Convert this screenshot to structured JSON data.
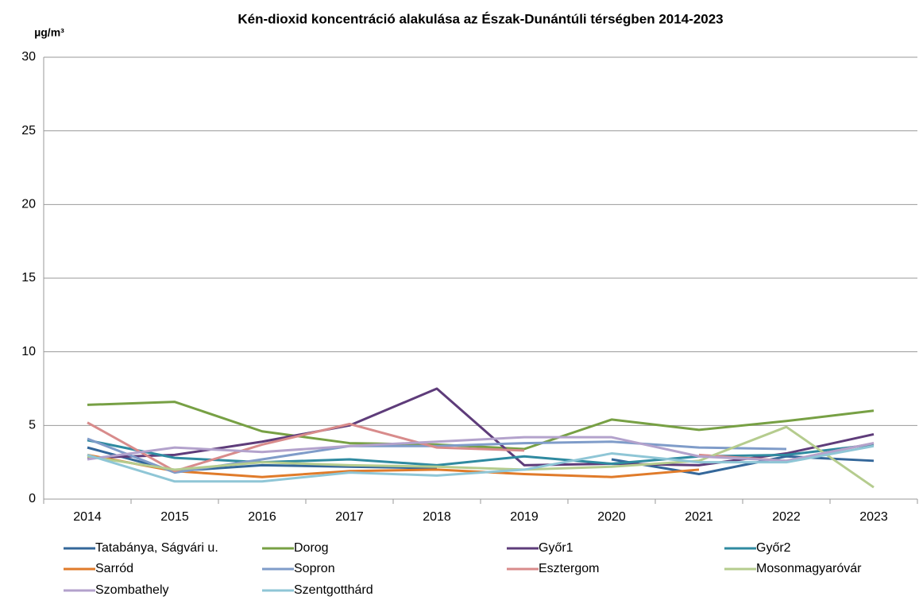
{
  "chart_data": {
    "type": "line",
    "title": "Kén-dioxid koncentráció alakulása az Észak-Dunántúli térségben 2014-2023",
    "ylabel": "µg/m³",
    "categories": [
      "2014",
      "2015",
      "2016",
      "2017",
      "2018",
      "2019",
      "2020",
      "2021",
      "2022",
      "2023"
    ],
    "ylim": [
      0,
      30
    ],
    "yticks": [
      0,
      5,
      10,
      15,
      20,
      25,
      30
    ],
    "grid": true,
    "legend": "bottom",
    "series": [
      {
        "name": "Tatabánya, Ságvári u.",
        "color": "#34679a",
        "values": [
          3.5,
          1.9,
          2.3,
          2.2,
          2.1,
          null,
          2.7,
          1.7,
          2.9,
          2.6
        ]
      },
      {
        "name": "Dorog",
        "color": "#77a044",
        "values": [
          6.4,
          6.6,
          4.6,
          3.8,
          3.7,
          3.4,
          5.4,
          4.7,
          5.3,
          6.0
        ]
      },
      {
        "name": "Győr1",
        "color": "#5e3c7a",
        "values": [
          2.8,
          3.0,
          3.9,
          5.0,
          7.5,
          2.3,
          2.4,
          2.3,
          3.1,
          4.4
        ]
      },
      {
        "name": "Győr2",
        "color": "#2f8aa0",
        "values": [
          4.0,
          2.8,
          2.5,
          2.7,
          2.3,
          2.9,
          2.4,
          2.9,
          3.0,
          3.7
        ]
      },
      {
        "name": "Sarród",
        "color": "#e07b2a",
        "values": [
          3.0,
          1.9,
          1.5,
          1.9,
          2.0,
          1.7,
          1.5,
          2.0,
          null,
          null
        ]
      },
      {
        "name": "Sopron",
        "color": "#7f9cc9",
        "values": [
          4.1,
          1.8,
          2.7,
          3.6,
          3.6,
          3.8,
          3.9,
          3.5,
          3.4,
          null
        ]
      },
      {
        "name": "Esztergom",
        "color": "#d88b8b",
        "values": [
          5.2,
          1.9,
          3.7,
          5.1,
          3.5,
          3.3,
          null,
          3.0,
          2.6,
          3.8
        ]
      },
      {
        "name": "Mosonmagyaróvár",
        "color": "#b5cc8e",
        "values": [
          2.9,
          2.0,
          2.5,
          2.3,
          2.2,
          2.0,
          2.2,
          2.6,
          4.9,
          0.8
        ]
      },
      {
        "name": "Szombathely",
        "color": "#b3a2cc",
        "values": [
          2.7,
          3.5,
          3.2,
          3.6,
          3.9,
          4.2,
          4.2,
          2.9,
          2.6,
          3.8
        ]
      },
      {
        "name": "Szentgotthárd",
        "color": "#8fc6d6",
        "values": [
          3.0,
          1.2,
          1.2,
          1.8,
          1.6,
          2.0,
          3.1,
          2.5,
          2.5,
          3.6
        ]
      }
    ]
  }
}
